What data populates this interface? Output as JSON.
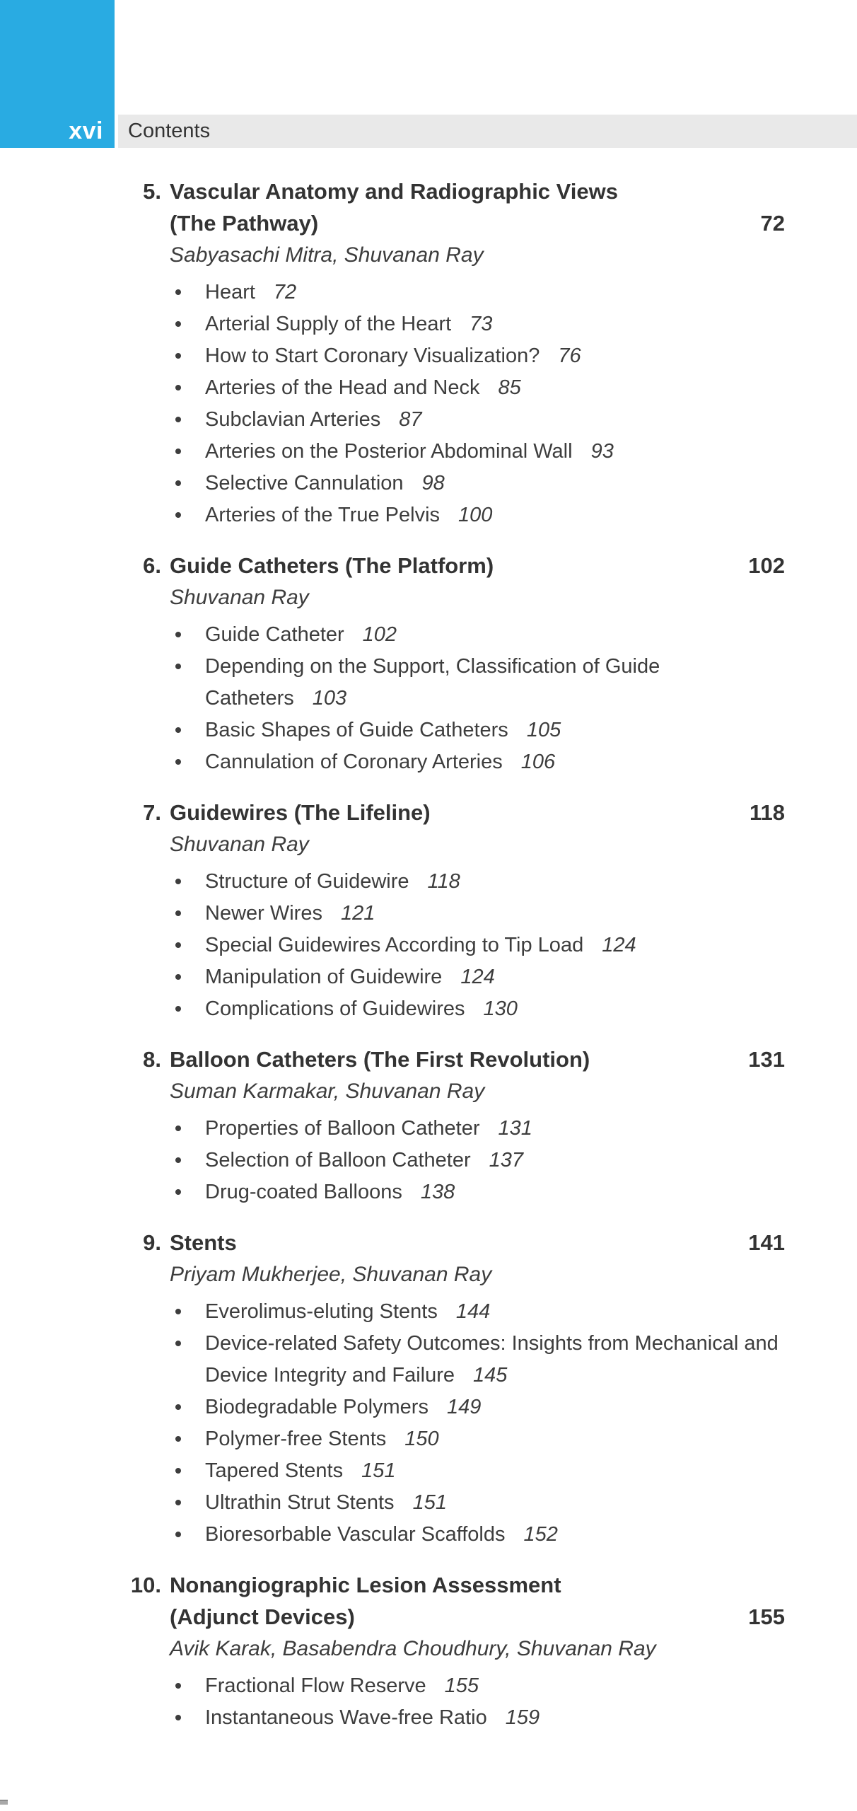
{
  "page": {
    "folio": "xvi",
    "header_label": "Contents"
  },
  "colors": {
    "accent_cyan": "#29ABE2",
    "header_bar_gray": "#E9E9E9",
    "heading_text": "#333333",
    "body_text": "#3d3d3d"
  },
  "chapters": [
    {
      "number": "5.",
      "title_lines": [
        "Vascular Anatomy and Radiographic Views",
        "(The Pathway)"
      ],
      "page": "72",
      "authors": "Sabyasachi Mitra, Shuvanan Ray",
      "topics": [
        {
          "text": "Heart",
          "page": "72"
        },
        {
          "text": "Arterial Supply of the Heart",
          "page": "73"
        },
        {
          "text": "How to Start Coronary Visualization?",
          "page": "76"
        },
        {
          "text": "Arteries of the Head and Neck",
          "page": "85"
        },
        {
          "text": "Subclavian Arteries",
          "page": "87"
        },
        {
          "text": "Arteries on the Posterior Abdominal Wall",
          "page": "93"
        },
        {
          "text": "Selective Cannulation",
          "page": "98"
        },
        {
          "text": "Arteries of the True Pelvis",
          "page": "100"
        }
      ]
    },
    {
      "number": "6.",
      "title_lines": [
        "Guide Catheters (The Platform)"
      ],
      "page": "102",
      "authors": "Shuvanan Ray",
      "topics": [
        {
          "text": "Guide Catheter",
          "page": "102"
        },
        {
          "text": "Depending on the Support, Classification of Guide Catheters",
          "page": "103"
        },
        {
          "text": "Basic Shapes of Guide Catheters",
          "page": "105"
        },
        {
          "text": "Cannulation of Coronary Arteries",
          "page": "106"
        }
      ]
    },
    {
      "number": "7.",
      "title_lines": [
        "Guidewires (The Lifeline)"
      ],
      "page": "118",
      "authors": "Shuvanan Ray",
      "topics": [
        {
          "text": "Structure of Guidewire",
          "page": "118"
        },
        {
          "text": "Newer Wires",
          "page": "121"
        },
        {
          "text": "Special Guidewires According to Tip Load",
          "page": "124"
        },
        {
          "text": "Manipulation of Guidewire",
          "page": "124"
        },
        {
          "text": "Complications of Guidewires",
          "page": "130"
        }
      ]
    },
    {
      "number": "8.",
      "title_lines": [
        "Balloon Catheters (The First Revolution)"
      ],
      "page": "131",
      "authors": "Suman Karmakar, Shuvanan Ray",
      "topics": [
        {
          "text": "Properties of Balloon Catheter",
          "page": "131"
        },
        {
          "text": "Selection of Balloon Catheter",
          "page": "137"
        },
        {
          "text": "Drug-coated Balloons",
          "page": "138"
        }
      ]
    },
    {
      "number": "9.",
      "title_lines": [
        "Stents"
      ],
      "page": "141",
      "authors": "Priyam Mukherjee, Shuvanan Ray",
      "topics": [
        {
          "text": "Everolimus-eluting Stents",
          "page": "144"
        },
        {
          "text": "Device-related Safety Outcomes: Insights from Mechanical and Device Integrity and Failure",
          "page": "145"
        },
        {
          "text": "Biodegradable Polymers",
          "page": "149"
        },
        {
          "text": "Polymer-free Stents",
          "page": "150"
        },
        {
          "text": "Tapered Stents",
          "page": "151"
        },
        {
          "text": "Ultrathin Strut Stents",
          "page": "151"
        },
        {
          "text": "Bioresorbable Vascular Scaffolds",
          "page": "152"
        }
      ]
    },
    {
      "number": "10.",
      "title_lines": [
        "Nonangiographic Lesion Assessment",
        "(Adjunct Devices)"
      ],
      "page": "155",
      "authors": "Avik Karak, Basabendra Choudhury, Shuvanan Ray",
      "topics": [
        {
          "text": "Fractional Flow Reserve",
          "page": "155"
        },
        {
          "text": "Instantaneous Wave-free Ratio",
          "page": "159"
        }
      ]
    }
  ]
}
